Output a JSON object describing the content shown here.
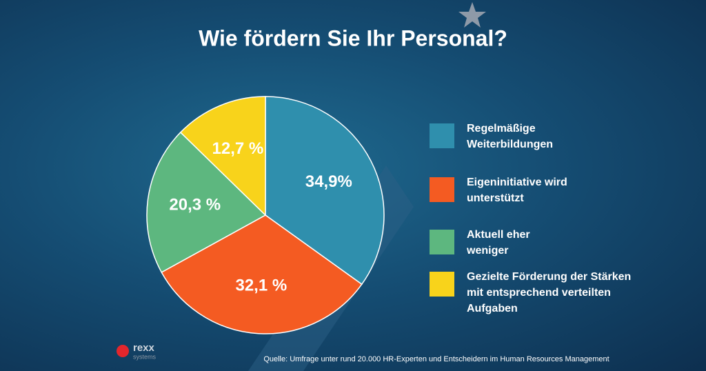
{
  "chart_data": {
    "type": "pie",
    "title": "Wie fördern Sie Ihr Personal?",
    "categories": [
      "Regelmäßige Weiterbildungen",
      "Eigeninitiative wird unterstützt",
      "Aktuell eher weniger",
      "Gezielte Förderung der Stärken mit entsprechend verteilten Aufgaben"
    ],
    "values": [
      34.9,
      32.1,
      20.3,
      12.7
    ],
    "value_labels": [
      "34,9%",
      "32,1 %",
      "20,3 %",
      "12,7 %"
    ],
    "colors": [
      "#2f8fad",
      "#f45b22",
      "#5db77f",
      "#f8d31b"
    ],
    "source": "Quelle: Umfrage unter rund 20.000 HR-Experten und Entscheidern im Human Resources Management",
    "logo": {
      "name": "rexx",
      "sub": "systems"
    }
  }
}
